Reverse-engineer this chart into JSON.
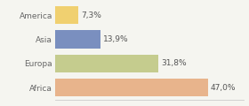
{
  "categories": [
    "Africa",
    "Europa",
    "Asia",
    "America"
  ],
  "values": [
    47.0,
    31.8,
    13.9,
    7.3
  ],
  "labels": [
    "47,0%",
    "31,8%",
    "13,9%",
    "7,3%"
  ],
  "bar_colors": [
    "#e8b48c",
    "#c5cc8e",
    "#7a8fbf",
    "#f0d070"
  ],
  "background_color": "#f5f5f0",
  "xlim": [
    0,
    58
  ],
  "label_fontsize": 6.5,
  "tick_fontsize": 6.5,
  "bar_height": 0.75
}
